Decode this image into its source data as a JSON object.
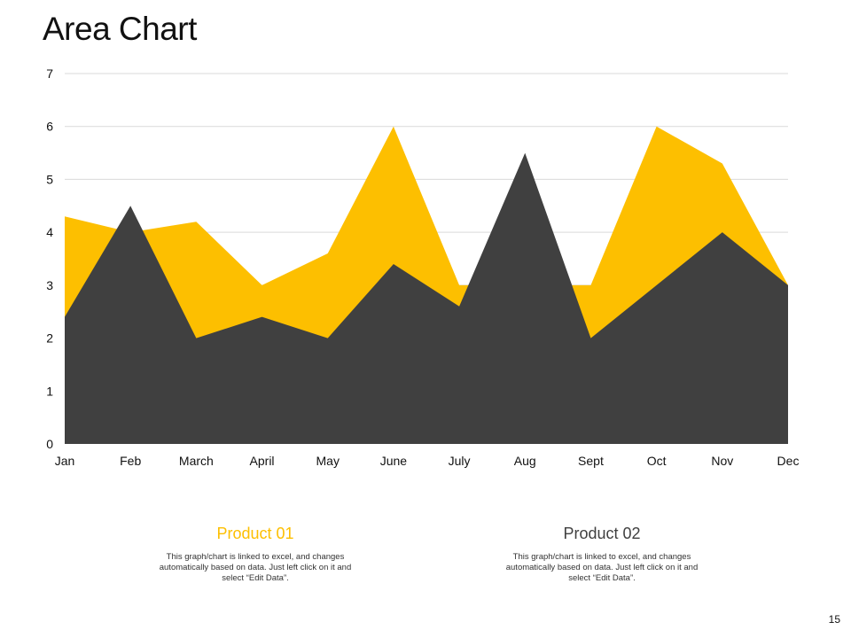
{
  "page": {
    "title": "Area Chart",
    "page_number": "15"
  },
  "colors": {
    "product_01": "#FDBF00",
    "product_02": "#404040",
    "grid": "#D9D9D9"
  },
  "legend": [
    {
      "name": "Product 01",
      "description": "This graph/chart is linked to excel, and changes automatically based on data. Just left click on it and select “Edit Data”."
    },
    {
      "name": "Product 02",
      "description": "This graph/chart is linked to excel, and changes automatically based on data. Just left click on it and select “Edit Data”."
    }
  ],
  "chart_data": {
    "type": "area",
    "title": "",
    "xlabel": "",
    "ylabel": "",
    "categories": [
      "Jan",
      "Feb",
      "March",
      "April",
      "May",
      "June",
      "July",
      "Aug",
      "Sept",
      "Oct",
      "Nov",
      "Dec"
    ],
    "series": [
      {
        "name": "Product 01",
        "values": [
          4.3,
          4.0,
          4.2,
          3.0,
          3.6,
          6.0,
          3.0,
          3.0,
          3.0,
          6.0,
          5.3,
          3.0
        ]
      },
      {
        "name": "Product 02",
        "values": [
          2.4,
          4.5,
          2.0,
          2.4,
          2.0,
          3.4,
          2.6,
          5.5,
          2.0,
          3.0,
          4.0,
          3.0
        ]
      }
    ],
    "ylim": [
      0,
      7
    ],
    "yticks": [
      0,
      1,
      2,
      3,
      4,
      5,
      6,
      7
    ],
    "grid": true,
    "legend_position": "bottom"
  }
}
